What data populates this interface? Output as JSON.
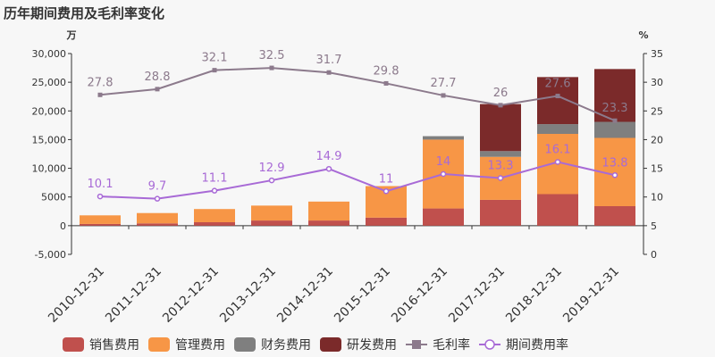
{
  "chart_data": {
    "type": "bar",
    "title": "历年期间费用及毛利率变化",
    "y_left_unit": "万",
    "y_right_unit": "%",
    "y_left_range": [
      -5000,
      30000
    ],
    "y_left_ticks": [
      "30,000",
      "25,000",
      "20,000",
      "15,000",
      "10,000",
      "5000",
      "0",
      "-5,000"
    ],
    "y_left_tick_values": [
      30000,
      25000,
      20000,
      15000,
      10000,
      5000,
      0,
      -5000
    ],
    "y_right_range": [
      0,
      35
    ],
    "y_right_ticks": [
      "35",
      "30",
      "25",
      "20",
      "15",
      "10",
      "5",
      "0"
    ],
    "y_right_tick_values": [
      35,
      30,
      25,
      20,
      15,
      10,
      5,
      0
    ],
    "grid": false,
    "legend_position": "bottom",
    "categories": [
      "2010-12-31",
      "2011-12-31",
      "2012-12-31",
      "2013-12-31",
      "2014-12-31",
      "2015-12-31",
      "2016-12-31",
      "2017-12-31",
      "2018-12-31",
      "2019-12-31"
    ],
    "stacked_series": [
      {
        "name": "销售费用",
        "color": "#c0504d",
        "values": [
          300,
          400,
          600,
          900,
          900,
          1400,
          3000,
          4500,
          5500,
          3400
        ]
      },
      {
        "name": "管理费用",
        "color": "#f79646",
        "values": [
          1500,
          1800,
          2300,
          2600,
          3300,
          5500,
          12000,
          7500,
          10500,
          11900
        ]
      },
      {
        "name": "财务费用",
        "color": "#7f7f7f",
        "values": [
          0,
          0,
          0,
          0,
          0,
          0,
          600,
          1000,
          1700,
          2800
        ]
      },
      {
        "name": "研发费用",
        "color": "#7b2a2a",
        "values": [
          0,
          0,
          0,
          0,
          0,
          0,
          0,
          8200,
          8200,
          9200
        ]
      }
    ],
    "line_series": [
      {
        "name": "毛利率",
        "color": "#8c7a8c",
        "marker": "square",
        "values": [
          27.8,
          28.8,
          32.1,
          32.5,
          31.7,
          29.8,
          27.7,
          26,
          27.6,
          23.3
        ]
      },
      {
        "name": "期间费用率",
        "color": "#a86ad6",
        "marker": "circle",
        "values": [
          10.1,
          9.7,
          11.1,
          12.9,
          14.9,
          11,
          14,
          13.3,
          16.1,
          13.8
        ]
      }
    ]
  }
}
